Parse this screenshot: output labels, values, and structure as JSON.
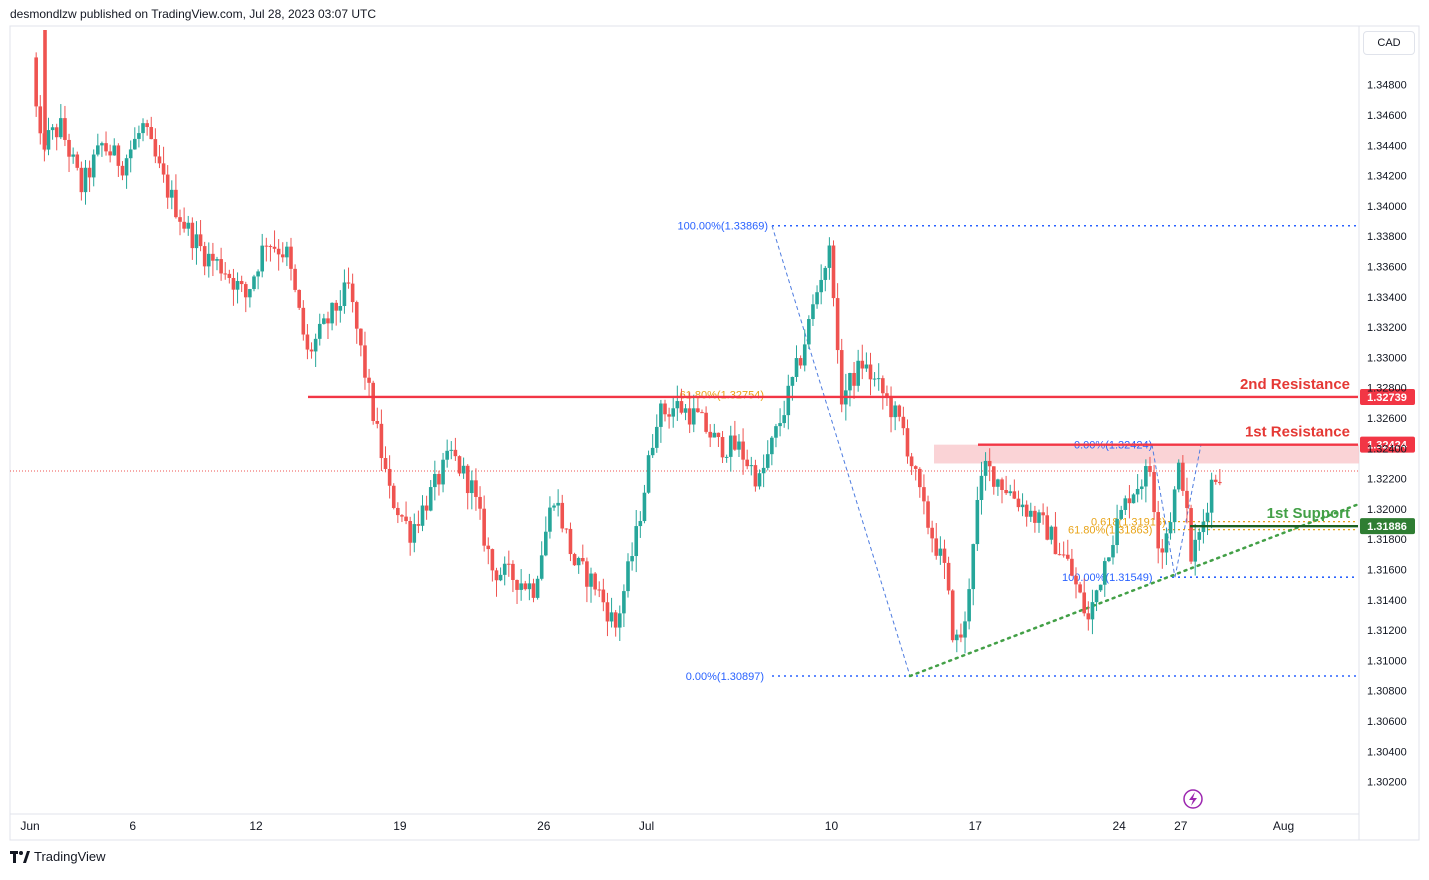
{
  "header": {
    "publisher_line": "desmondlzw published on TradingView.com, Jul 28, 2023 03:07 UTC"
  },
  "footer": {
    "brand": "TradingView"
  },
  "currency_label": "CAD",
  "colors": {
    "up": "#26a69a",
    "down": "#ef5350",
    "resistance": "#f23645",
    "support": "#2e7d32",
    "fib_blue": "#2962ff",
    "fib_orange": "#f57f17",
    "trend": "#43a047",
    "zone": "#f8c4c8"
  },
  "chart_data": {
    "type": "candlestick",
    "ylim": [
      1.301,
      1.351
    ],
    "y_ticks": [
      "1.34800",
      "1.34600",
      "1.34400",
      "1.34200",
      "1.34000",
      "1.33800",
      "1.33600",
      "1.33400",
      "1.33200",
      "1.33000",
      "1.32800",
      "1.32600",
      "1.32400",
      "1.32200",
      "1.32000",
      "1.31800",
      "1.31600",
      "1.31400",
      "1.31200",
      "1.31000",
      "1.30800",
      "1.30600",
      "1.30400",
      "1.30200"
    ],
    "x_ticks": [
      {
        "label": "Jun",
        "d": 0
      },
      {
        "label": "6",
        "d": 5
      },
      {
        "label": "12",
        "d": 11
      },
      {
        "label": "19",
        "d": 18
      },
      {
        "label": "26",
        "d": 25
      },
      {
        "label": "Jul",
        "d": 30
      },
      {
        "label": "10",
        "d": 39
      },
      {
        "label": "17",
        "d": 46
      },
      {
        "label": "24",
        "d": 53
      },
      {
        "label": "27",
        "d": 56
      },
      {
        "label": "Aug",
        "d": 61
      }
    ],
    "levels": [
      {
        "name": "2nd Resistance",
        "value": 1.32739,
        "label": "1.32739"
      },
      {
        "name": "1st Resistance",
        "value": 1.32424,
        "label": "1.32424"
      },
      {
        "name": "1st Support",
        "value": 1.31886,
        "label": "1.31886"
      }
    ],
    "fib_labels": [
      {
        "text": "100.00%(1.33869)",
        "value": 1.33869
      },
      {
        "text": "61.80%(1.32754)",
        "value": 1.32754
      },
      {
        "text": "0.00%(1.30897)",
        "value": 1.30897
      },
      {
        "text": "0.00%(1.32424)",
        "value": 1.32424
      },
      {
        "text": "0.618(1.31916)",
        "value": 1.31916
      },
      {
        "text": "61.80%(1.31863)",
        "value": 1.31863
      },
      {
        "text": "100.00%(1.31549)",
        "value": 1.31549
      }
    ],
    "close_price": 1.3225,
    "anchors": [
      [
        0,
        1.3498
      ],
      [
        0.5,
        1.344
      ],
      [
        1.5,
        1.3452
      ],
      [
        2.5,
        1.3412
      ],
      [
        3.5,
        1.344
      ],
      [
        4.5,
        1.3428
      ],
      [
        5.5,
        1.3452
      ],
      [
        6.5,
        1.3416
      ],
      [
        7.5,
        1.3388
      ],
      [
        8.5,
        1.3368
      ],
      [
        9.5,
        1.3358
      ],
      [
        10.5,
        1.334
      ],
      [
        11.5,
        1.3378
      ],
      [
        12.5,
        1.3368
      ],
      [
        13.5,
        1.3302
      ],
      [
        14.5,
        1.3324
      ],
      [
        15.5,
        1.3346
      ],
      [
        16.5,
        1.3276
      ],
      [
        17.5,
        1.321
      ],
      [
        18.5,
        1.3185
      ],
      [
        19.5,
        1.321
      ],
      [
        20.5,
        1.3236
      ],
      [
        21.5,
        1.3214
      ],
      [
        22.5,
        1.316
      ],
      [
        23.5,
        1.3155
      ],
      [
        24.5,
        1.3148
      ],
      [
        25.5,
        1.321
      ],
      [
        26.5,
        1.3164
      ],
      [
        27.5,
        1.315
      ],
      [
        28.5,
        1.3122
      ],
      [
        29.5,
        1.3182
      ],
      [
        30.5,
        1.3262
      ],
      [
        31.5,
        1.3268
      ],
      [
        32.5,
        1.326
      ],
      [
        33.5,
        1.3242
      ],
      [
        34.5,
        1.324
      ],
      [
        35.5,
        1.3218
      ],
      [
        36.5,
        1.3258
      ],
      [
        37.5,
        1.33
      ],
      [
        38.5,
        1.3355
      ],
      [
        39.0,
        1.3372
      ],
      [
        39.4,
        1.3272
      ],
      [
        40.5,
        1.3296
      ],
      [
        41.5,
        1.3276
      ],
      [
        42.5,
        1.3252
      ],
      [
        43.5,
        1.3198
      ],
      [
        44.5,
        1.316
      ],
      [
        45.0,
        1.311
      ],
      [
        45.5,
        1.3122
      ],
      [
        46.0,
        1.3196
      ],
      [
        46.5,
        1.3228
      ],
      [
        47.5,
        1.3214
      ],
      [
        48.5,
        1.32
      ],
      [
        49.5,
        1.3186
      ],
      [
        50.5,
        1.3164
      ],
      [
        51.5,
        1.3126
      ],
      [
        52.5,
        1.3176
      ],
      [
        53.5,
        1.321
      ],
      [
        54.5,
        1.3226
      ],
      [
        55.0,
        1.317
      ],
      [
        55.5,
        1.3196
      ],
      [
        56.0,
        1.3232
      ],
      [
        56.5,
        1.3168
      ],
      [
        57.0,
        1.3186
      ],
      [
        57.5,
        1.3218
      ],
      [
        58.0,
        1.3226
      ]
    ]
  }
}
